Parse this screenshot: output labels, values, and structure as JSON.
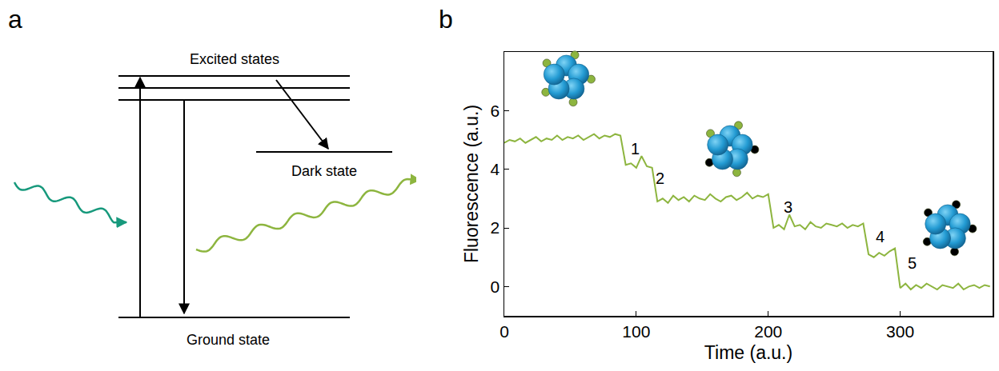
{
  "panel_labels": [
    "a",
    "b"
  ],
  "diagram": {
    "levels": {
      "excited": "Excited states",
      "dark": "Dark state",
      "ground": "Ground state"
    }
  },
  "chart_data": {
    "type": "line",
    "xlabel": "Time (a.u.)",
    "ylabel": "Fluorescence (a.u.)",
    "color": "#8db53f",
    "x": [
      0,
      4,
      8,
      12,
      16,
      20,
      24,
      28,
      32,
      36,
      40,
      44,
      48,
      52,
      56,
      60,
      64,
      68,
      72,
      76,
      80,
      84,
      88,
      92,
      96,
      100,
      104,
      108,
      112,
      116,
      120,
      124,
      128,
      132,
      136,
      140,
      144,
      148,
      152,
      156,
      160,
      164,
      168,
      172,
      176,
      180,
      184,
      188,
      192,
      196,
      200,
      204,
      208,
      212,
      216,
      220,
      224,
      228,
      232,
      236,
      240,
      244,
      248,
      252,
      256,
      260,
      264,
      268,
      272,
      276,
      280,
      284,
      288,
      292,
      296,
      300,
      304,
      308,
      312,
      316,
      320,
      324,
      328,
      332,
      336,
      340,
      344,
      348,
      352,
      356,
      360,
      364,
      368
    ],
    "values": [
      4.9,
      5.0,
      4.95,
      5.05,
      4.9,
      5.0,
      5.1,
      4.95,
      5.05,
      5.0,
      5.15,
      5.0,
      5.1,
      5.05,
      5.15,
      5.0,
      5.1,
      5.2,
      5.05,
      5.15,
      5.1,
      5.2,
      5.15,
      4.15,
      4.2,
      4.05,
      4.45,
      4.1,
      4.05,
      2.9,
      3.0,
      2.85,
      3.1,
      2.95,
      3.05,
      2.9,
      3.1,
      3.0,
      2.95,
      3.15,
      3.0,
      2.9,
      3.05,
      3.1,
      2.95,
      3.05,
      3.2,
      3.0,
      3.1,
      3.05,
      3.15,
      2.0,
      2.1,
      1.95,
      2.45,
      2.05,
      2.1,
      1.95,
      2.2,
      2.05,
      2.0,
      2.15,
      2.1,
      2.05,
      2.15,
      2.0,
      2.1,
      2.05,
      2.15,
      1.1,
      1.0,
      1.15,
      1.05,
      1.2,
      1.3,
      -0.05,
      0.1,
      -0.1,
      0.05,
      -0.05,
      0.1,
      0.0,
      -0.1,
      0.05,
      0.0,
      -0.05,
      0.1,
      -0.1,
      0.0,
      0.05,
      -0.05,
      0.05,
      0.0
    ],
    "xlim": [
      0,
      370
    ],
    "xticks": [
      0,
      100,
      200,
      300
    ],
    "ylim": [
      -1,
      8
    ],
    "yticks": [
      0,
      2,
      4,
      6
    ],
    "grid": false,
    "annotations": [
      {
        "text": "1",
        "x": 99,
        "y": 4.7
      },
      {
        "text": "2",
        "x": 118,
        "y": 3.7
      },
      {
        "text": "3",
        "x": 215,
        "y": 2.7
      },
      {
        "text": "4",
        "x": 285,
        "y": 1.7
      },
      {
        "text": "5",
        "x": 309,
        "y": 0.8
      }
    ],
    "icons": [
      {
        "x": 47,
        "y": 7.1,
        "bright": 5
      },
      {
        "x": 171,
        "y": 4.7,
        "bright": 3
      },
      {
        "x": 336,
        "y": 2.0,
        "bright": 0
      }
    ]
  }
}
